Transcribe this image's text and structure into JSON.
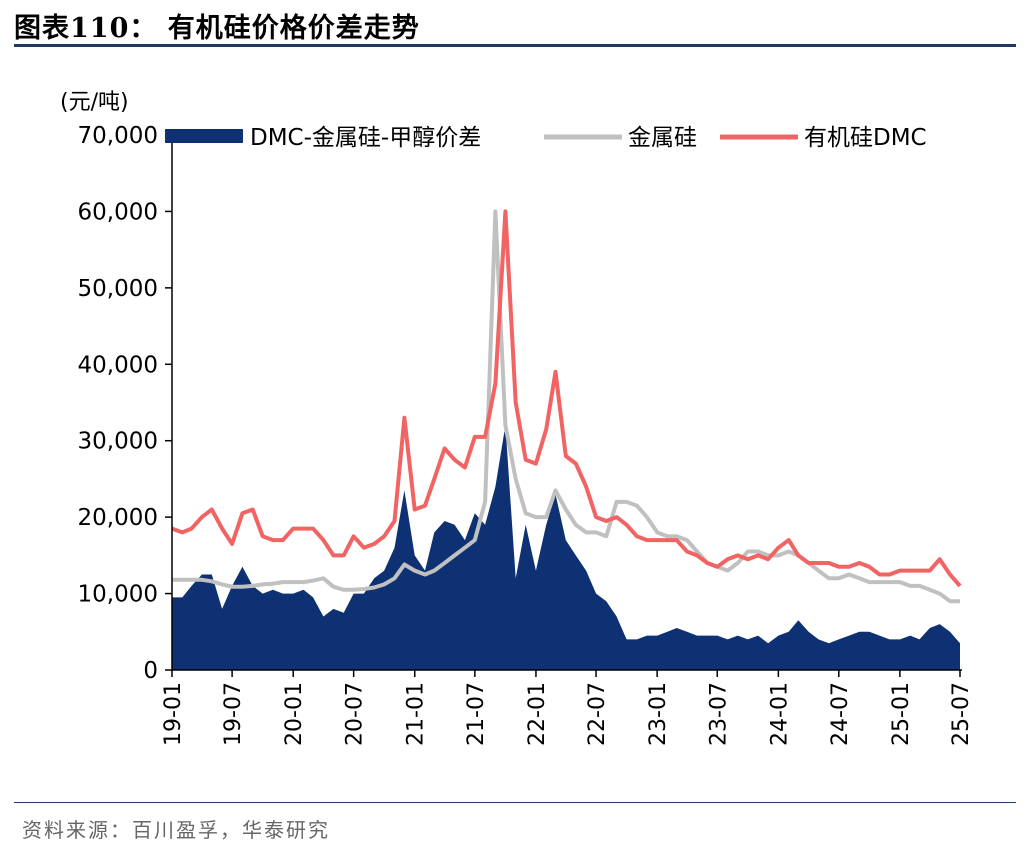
{
  "header": {
    "title": "图表110：  有机硅价格价差走势"
  },
  "footer": {
    "source": "资料来源：百川盈孚，华泰研究"
  },
  "chart_data": {
    "type": "line",
    "unit_label": "(元/吨)",
    "ylim": [
      0,
      70000
    ],
    "y_ticks": [
      "0",
      "10,000",
      "20,000",
      "30,000",
      "40,000",
      "50,000",
      "60,000",
      "70,000"
    ],
    "x_ticks": [
      "19-01",
      "19-07",
      "20-01",
      "20-07",
      "21-01",
      "21-07",
      "22-01",
      "22-07",
      "23-01",
      "23-07",
      "24-01",
      "24-07",
      "25-01",
      "25-07"
    ],
    "legend_position": "top",
    "grid": false,
    "colors": {
      "spread": "#0d3172",
      "silicon": "#c0c0c0",
      "dmc": "#f26363"
    },
    "series": [
      {
        "name": "DMC-金属硅-甲醇价差",
        "kind": "area",
        "x": [
          "2019-01",
          "2019-02",
          "2019-03",
          "2019-04",
          "2019-05",
          "2019-06",
          "2019-07",
          "2019-08",
          "2019-09",
          "2019-10",
          "2019-11",
          "2019-12",
          "2020-01",
          "2020-02",
          "2020-03",
          "2020-04",
          "2020-05",
          "2020-06",
          "2020-07",
          "2020-08",
          "2020-09",
          "2020-10",
          "2020-11",
          "2020-12",
          "2021-01",
          "2021-02",
          "2021-03",
          "2021-04",
          "2021-05",
          "2021-06",
          "2021-07",
          "2021-08",
          "2021-09",
          "2021-10",
          "2021-11",
          "2021-12",
          "2022-01",
          "2022-02",
          "2022-03",
          "2022-04",
          "2022-05",
          "2022-06",
          "2022-07",
          "2022-08",
          "2022-09",
          "2022-10",
          "2022-11",
          "2022-12",
          "2023-01",
          "2023-02",
          "2023-03",
          "2023-04",
          "2023-05",
          "2023-06",
          "2023-07",
          "2023-08",
          "2023-09",
          "2023-10",
          "2023-11",
          "2023-12",
          "2024-01",
          "2024-02",
          "2024-03",
          "2024-04",
          "2024-05",
          "2024-06",
          "2024-07",
          "2024-08",
          "2024-09",
          "2024-10",
          "2024-11",
          "2024-12",
          "2025-01",
          "2025-02",
          "2025-03",
          "2025-04",
          "2025-05",
          "2025-06",
          "2025-07"
        ],
        "values": [
          9500,
          9500,
          11000,
          12500,
          12500,
          8000,
          11000,
          13500,
          11000,
          10000,
          10500,
          10000,
          10000,
          10500,
          9500,
          7000,
          8000,
          7500,
          10000,
          10000,
          12000,
          13000,
          16000,
          23500,
          15000,
          13000,
          18000,
          19500,
          19000,
          17000,
          20500,
          19000,
          24000,
          32000,
          12000,
          19000,
          13000,
          19000,
          23000,
          17000,
          15000,
          13000,
          10000,
          9000,
          7000,
          4000,
          4000,
          4500,
          4500,
          5000,
          5500,
          5000,
          4500,
          4500,
          4500,
          4000,
          4500,
          4000,
          4500,
          3500,
          4500,
          5000,
          6500,
          5000,
          4000,
          3500,
          4000,
          4500,
          5000,
          5000,
          4500,
          4000,
          4000,
          4500,
          4000,
          5500,
          6000,
          5000,
          3500
        ]
      },
      {
        "name": "金属硅",
        "kind": "line",
        "x": [
          "2019-01",
          "2019-02",
          "2019-03",
          "2019-04",
          "2019-05",
          "2019-06",
          "2019-07",
          "2019-08",
          "2019-09",
          "2019-10",
          "2019-11",
          "2019-12",
          "2020-01",
          "2020-02",
          "2020-03",
          "2020-04",
          "2020-05",
          "2020-06",
          "2020-07",
          "2020-08",
          "2020-09",
          "2020-10",
          "2020-11",
          "2020-12",
          "2021-01",
          "2021-02",
          "2021-03",
          "2021-04",
          "2021-05",
          "2021-06",
          "2021-07",
          "2021-08",
          "2021-09",
          "2021-10",
          "2021-11",
          "2021-12",
          "2022-01",
          "2022-02",
          "2022-03",
          "2022-04",
          "2022-05",
          "2022-06",
          "2022-07",
          "2022-08",
          "2022-09",
          "2022-10",
          "2022-11",
          "2022-12",
          "2023-01",
          "2023-02",
          "2023-03",
          "2023-04",
          "2023-05",
          "2023-06",
          "2023-07",
          "2023-08",
          "2023-09",
          "2023-10",
          "2023-11",
          "2023-12",
          "2024-01",
          "2024-02",
          "2024-03",
          "2024-04",
          "2024-05",
          "2024-06",
          "2024-07",
          "2024-08",
          "2024-09",
          "2024-10",
          "2024-11",
          "2024-12",
          "2025-01",
          "2025-02",
          "2025-03",
          "2025-04",
          "2025-05",
          "2025-06",
          "2025-07"
        ],
        "values": [
          11800,
          11800,
          11800,
          11800,
          11600,
          11200,
          10900,
          10900,
          11000,
          11200,
          11300,
          11500,
          11500,
          11500,
          11700,
          12000,
          10900,
          10500,
          10500,
          10600,
          10800,
          11200,
          12000,
          13800,
          13000,
          12500,
          13000,
          14000,
          15000,
          16000,
          17000,
          22000,
          60000,
          32000,
          25000,
          20500,
          20000,
          20000,
          23500,
          21000,
          19000,
          18000,
          18000,
          17500,
          22000,
          22000,
          21500,
          20000,
          18000,
          17500,
          17500,
          17000,
          15500,
          14000,
          13500,
          13000,
          14000,
          15500,
          15500,
          15000,
          15000,
          15500,
          15000,
          14000,
          13000,
          12000,
          12000,
          12500,
          12000,
          11500,
          11500,
          11500,
          11500,
          11000,
          11000,
          10500,
          10000,
          9000,
          9000
        ]
      },
      {
        "name": "有机硅DMC",
        "kind": "line",
        "x": [
          "2019-01",
          "2019-02",
          "2019-03",
          "2019-04",
          "2019-05",
          "2019-06",
          "2019-07",
          "2019-08",
          "2019-09",
          "2019-10",
          "2019-11",
          "2019-12",
          "2020-01",
          "2020-02",
          "2020-03",
          "2020-04",
          "2020-05",
          "2020-06",
          "2020-07",
          "2020-08",
          "2020-09",
          "2020-10",
          "2020-11",
          "2020-12",
          "2021-01",
          "2021-02",
          "2021-03",
          "2021-04",
          "2021-05",
          "2021-06",
          "2021-07",
          "2021-08",
          "2021-09",
          "2021-10",
          "2021-11",
          "2021-12",
          "2022-01",
          "2022-02",
          "2022-03",
          "2022-04",
          "2022-05",
          "2022-06",
          "2022-07",
          "2022-08",
          "2022-09",
          "2022-10",
          "2022-11",
          "2022-12",
          "2023-01",
          "2023-02",
          "2023-03",
          "2023-04",
          "2023-05",
          "2023-06",
          "2023-07",
          "2023-08",
          "2023-09",
          "2023-10",
          "2023-11",
          "2023-12",
          "2024-01",
          "2024-02",
          "2024-03",
          "2024-04",
          "2024-05",
          "2024-06",
          "2024-07",
          "2024-08",
          "2024-09",
          "2024-10",
          "2024-11",
          "2024-12",
          "2025-01",
          "2025-02",
          "2025-03",
          "2025-04",
          "2025-05",
          "2025-06",
          "2025-07"
        ],
        "values": [
          18500,
          18000,
          18500,
          20000,
          21000,
          18500,
          16500,
          20500,
          21000,
          17500,
          17000,
          17000,
          18500,
          18500,
          18500,
          17000,
          15000,
          15000,
          17500,
          16000,
          16500,
          17500,
          19500,
          33000,
          21000,
          21500,
          25000,
          29000,
          27500,
          26500,
          30500,
          30500,
          37500,
          60000,
          35000,
          27500,
          27000,
          31500,
          39000,
          28000,
          27000,
          24000,
          20000,
          19500,
          20000,
          19000,
          17500,
          17000,
          17000,
          17000,
          17000,
          15500,
          15000,
          14000,
          13500,
          14500,
          15000,
          14500,
          15000,
          14500,
          16000,
          17000,
          15000,
          14000,
          14000,
          14000,
          13500,
          13500,
          14000,
          13500,
          12500,
          12500,
          13000,
          13000,
          13000,
          13000,
          14500,
          12500,
          11000
        ]
      }
    ]
  }
}
